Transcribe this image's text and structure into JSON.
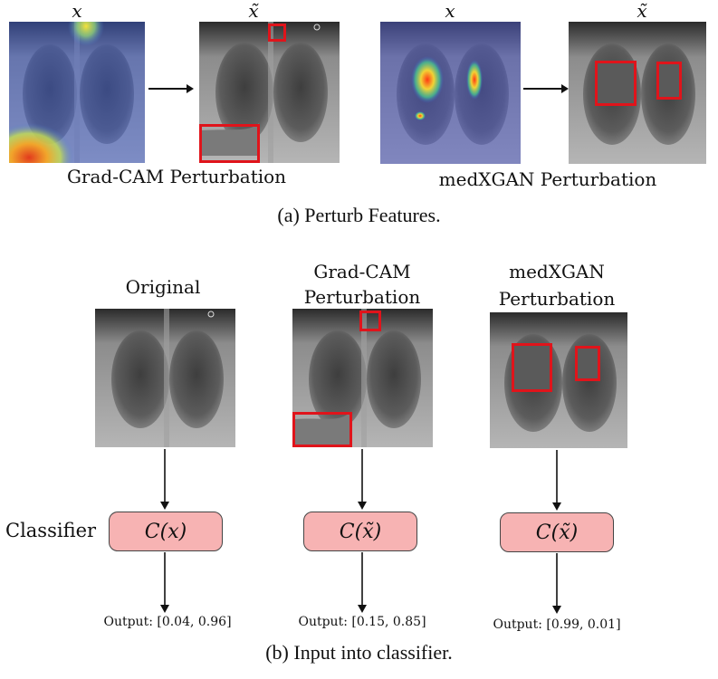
{
  "panel_a": {
    "caption": "(a) Perturb Features.",
    "gradcam": {
      "label": "Grad-CAM Perturbation",
      "input_symbol": "x",
      "output_symbol": "x̃"
    },
    "medxgan": {
      "label": "medXGAN Perturbation",
      "input_symbol": "x",
      "output_symbol": "x̃"
    }
  },
  "panel_b": {
    "caption": "(b) Input into classifier.",
    "side_label": "Classifier",
    "columns": [
      {
        "title_line1": "Original",
        "title_line2": "",
        "classifier": "C(x)",
        "output": "Output: [0.04, 0.96]"
      },
      {
        "title_line1": "Grad-CAM",
        "title_line2": "Perturbation",
        "classifier": "C(x̃)",
        "output": "Output: [0.15, 0.85]"
      },
      {
        "title_line1": "medXGAN",
        "title_line2": "Perturbation",
        "classifier": "C(x̃)",
        "output": "Output: [0.99, 0.01]"
      }
    ]
  },
  "colors": {
    "highlight_box": "#e0141b",
    "classifier_fill": "#f7b3b3",
    "arrow": "#111111"
  }
}
